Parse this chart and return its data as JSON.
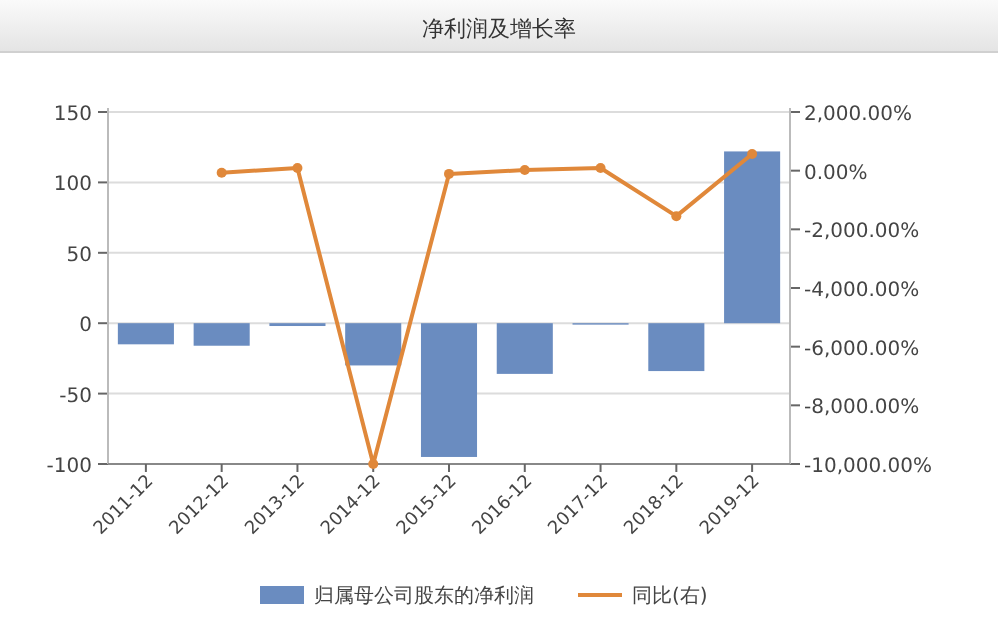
{
  "chart_data": {
    "type": "bar",
    "title": "净利润及增长率",
    "categories": [
      "2011-12",
      "2012-12",
      "2013-12",
      "2014-12",
      "2015-12",
      "2016-12",
      "2017-12",
      "2018-12",
      "2019-12"
    ],
    "series": [
      {
        "name": "归属母公司股东的净利润",
        "color": "#6a8cc0",
        "values": [
          -15,
          -16,
          -2,
          -30,
          -95,
          -36,
          -1,
          -34,
          122
        ]
      },
      {
        "name": "同比(右)",
        "type": "line",
        "axis": "y2",
        "color": "#e0883a",
        "marker": "circle",
        "values": [
          null,
          -70,
          90,
          -10000,
          -110,
          20,
          90,
          -1550,
          570
        ]
      }
    ],
    "ylim": [
      -100,
      150
    ],
    "yticks": [
      -100,
      -50,
      0,
      50,
      100,
      150
    ],
    "y2lim": [
      -10000,
      2000
    ],
    "y2ticks": [
      {
        "value": -10000,
        "label": "-10,000.00%"
      },
      {
        "value": -8000,
        "label": "-8,000.00%"
      },
      {
        "value": -6000,
        "label": "-6,000.00%"
      },
      {
        "value": -4000,
        "label": "-4,000.00%"
      },
      {
        "value": -2000,
        "label": "-2,000.00%"
      },
      {
        "value": 0,
        "label": "0.00%"
      },
      {
        "value": 2000,
        "label": "2,000.00%"
      }
    ],
    "grid": "y",
    "legend": "bottom"
  }
}
